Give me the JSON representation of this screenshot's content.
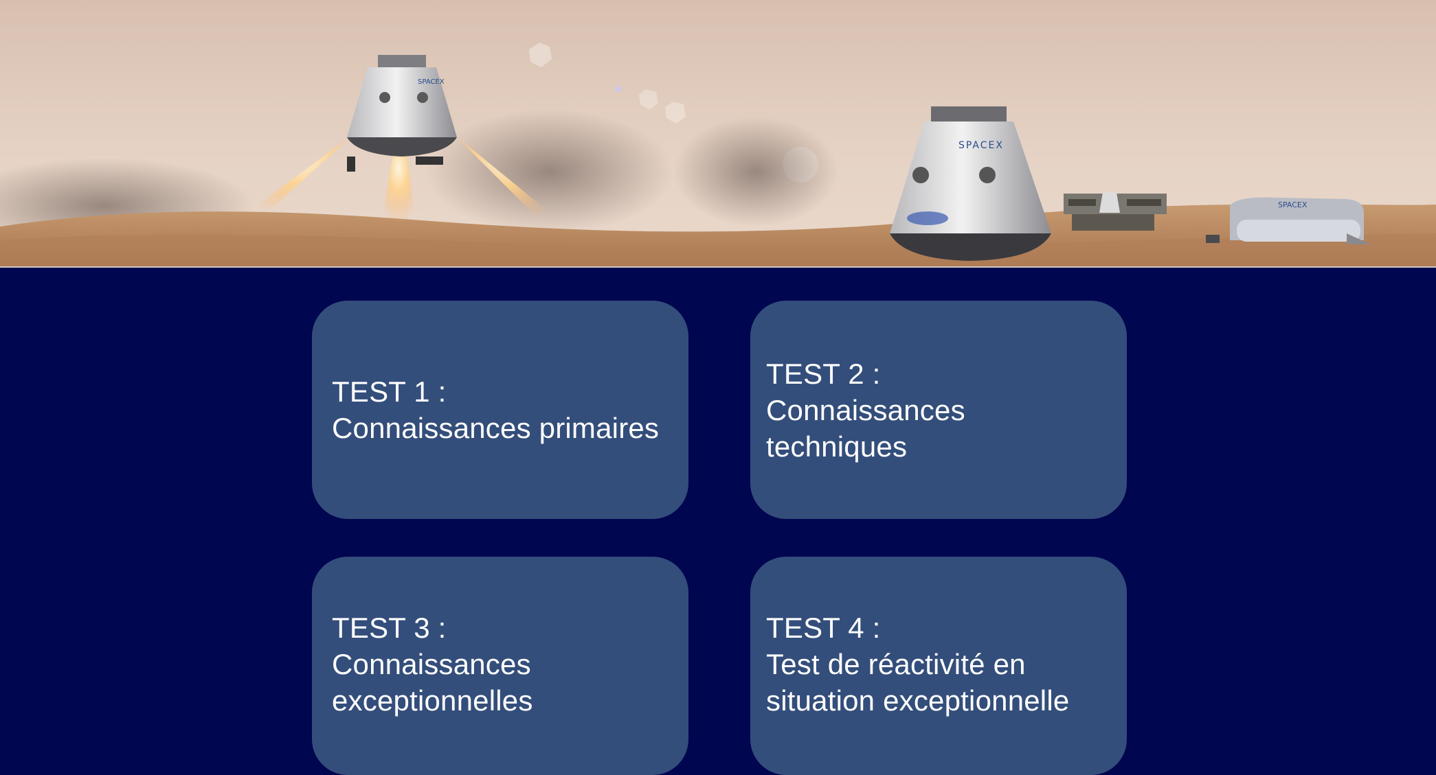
{
  "banner": {
    "capsule_left_label": "SPACEX",
    "capsule_right_label": "SPACEX",
    "habitat_label": "SPACEX"
  },
  "tests": [
    {
      "title": "TEST 1 :",
      "subtitle": "Connaissances primaires"
    },
    {
      "title": "TEST 2 :",
      "subtitle": "Connaissances\ntechniques"
    },
    {
      "title": "TEST 3 :",
      "subtitle": "Connaissances\nexceptionnelles"
    },
    {
      "title": "TEST 4 :",
      "subtitle": "Test de réactivité en\nsituation exceptionnelle"
    }
  ],
  "colors": {
    "background": "#000650",
    "card": "#344e7b",
    "text": "#ffffff"
  }
}
